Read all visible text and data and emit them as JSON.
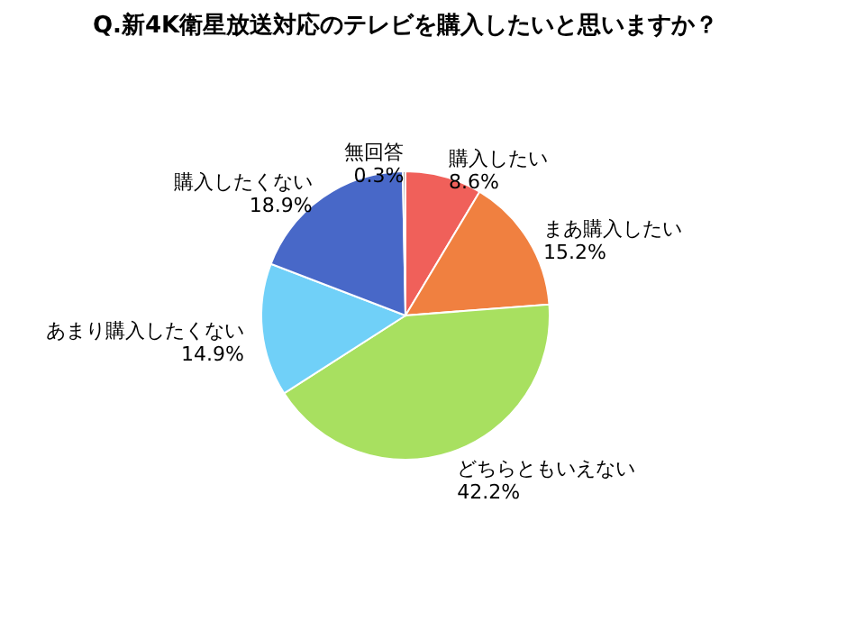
{
  "chart_data": {
    "type": "pie",
    "title": "Q.新4K衛星放送対応のテレビを購入したいと思いますか？",
    "categories": [
      "購入したい",
      "まあ購入したい",
      "どちらともいえない",
      "あまり購入したくない",
      "購入したくない",
      "無回答"
    ],
    "values": [
      8.6,
      15.2,
      42.2,
      14.9,
      18.9,
      0.3
    ],
    "colors": [
      "#f0605a",
      "#f08040",
      "#a8e060",
      "#70d0f8",
      "#4868c8",
      "#a0a0a0"
    ],
    "value_labels": [
      "8.6%",
      "15.2%",
      "42.2%",
      "14.9%",
      "18.9%",
      "0.3%"
    ],
    "legend": false
  }
}
